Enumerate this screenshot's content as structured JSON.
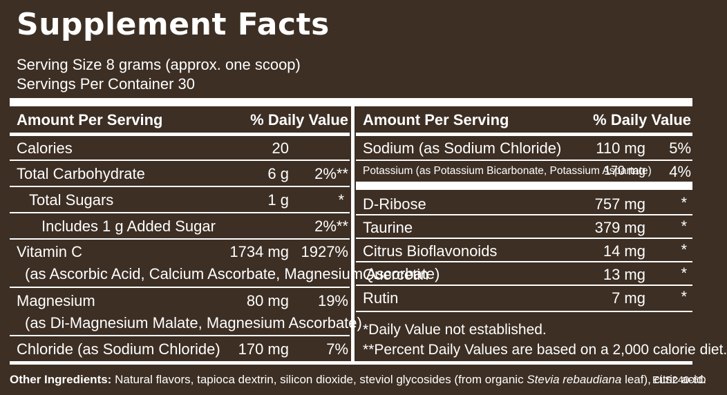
{
  "title": "Supplement Facts",
  "serving_size": "Serving Size 8 grams (approx. one scoop)",
  "servings_per_container": "Servings Per Container 30",
  "left_table": {
    "header": {
      "amount": "Amount Per Serving",
      "dv": "% Daily Value"
    },
    "rows": [
      {
        "name": "Calories",
        "amount": "20",
        "dv": ""
      },
      {
        "name": "Total Carbohydrate",
        "amount": "6 g",
        "dv": "2%**"
      },
      {
        "name": "Total Sugars",
        "amount": "1 g",
        "dv": "*"
      },
      {
        "name": "Includes 1 g Added Sugar",
        "amount": "",
        "dv": "2%**"
      },
      {
        "name": "Vitamin C",
        "amount": "1734 mg",
        "dv": "1927%",
        "sub": "(as Ascorbic Acid, Calcium Ascorbate, Magnesium Ascorbate)"
      },
      {
        "name": "Magnesium",
        "amount": "80 mg",
        "dv": "19%",
        "sub": "(as Di-Magnesium Malate, Magnesium Ascorbate)"
      },
      {
        "name": "Chloride (as Sodium Chloride)",
        "amount": "170 mg",
        "dv": "7%"
      }
    ]
  },
  "right_table": {
    "header": {
      "amount": "Amount Per Serving",
      "dv": "% Daily Value"
    },
    "rows": [
      {
        "name": "Sodium (as Sodium Chloride)",
        "amount": "110 mg",
        "dv": "5%"
      },
      {
        "name": "Potassium (as Potassium Bicarbonate, Potassium Aspartate)",
        "amount": "170 mg",
        "dv": "4%"
      },
      {
        "name": "D-Ribose",
        "amount": "757 mg",
        "dv": "*"
      },
      {
        "name": "Taurine",
        "amount": "379 mg",
        "dv": "*"
      },
      {
        "name": "Citrus Bioflavonoids",
        "amount": "14 mg",
        "dv": "*"
      },
      {
        "name": "Quercetin",
        "amount": "13 mg",
        "dv": "*"
      },
      {
        "name": "Rutin",
        "amount": "7 mg",
        "dv": "*"
      }
    ],
    "footnote1": "*Daily Value not established.",
    "footnote2": "**Percent Daily Values are based on a 2,000 calorie diet."
  },
  "other_ingredients": {
    "label": "Other Ingredients:",
    "text_before": " Natural flavors, tapioca dextrin, silicon dioxide, steviol glycosides (from organic ",
    "italic": "Stevia rebaudiana",
    "text_after": " leaf), citric acid."
  },
  "product_code": "ELS240-6D",
  "colors": {
    "background": "#3d2f24",
    "text": "#ffffff"
  }
}
